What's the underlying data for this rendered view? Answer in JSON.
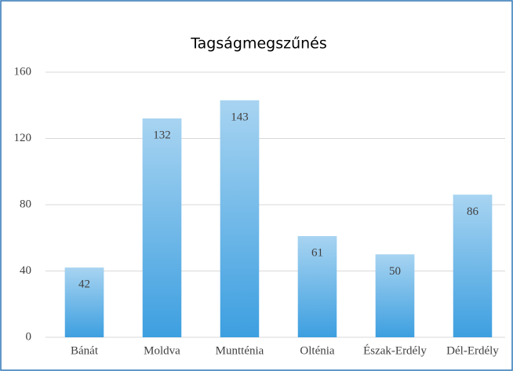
{
  "chart_data": {
    "type": "bar",
    "title": "Tagságmegszűnés",
    "categories": [
      "Bánát",
      "Moldva",
      "Muntténia",
      "Olténia",
      "Észak-Erdély",
      "Dél-Erdély"
    ],
    "values": [
      42,
      132,
      143,
      61,
      50,
      86
    ],
    "color": "#3d9fe0",
    "ylim": [
      0,
      160
    ],
    "yticks": [
      0,
      40,
      80,
      120,
      160
    ],
    "grid": true
  }
}
